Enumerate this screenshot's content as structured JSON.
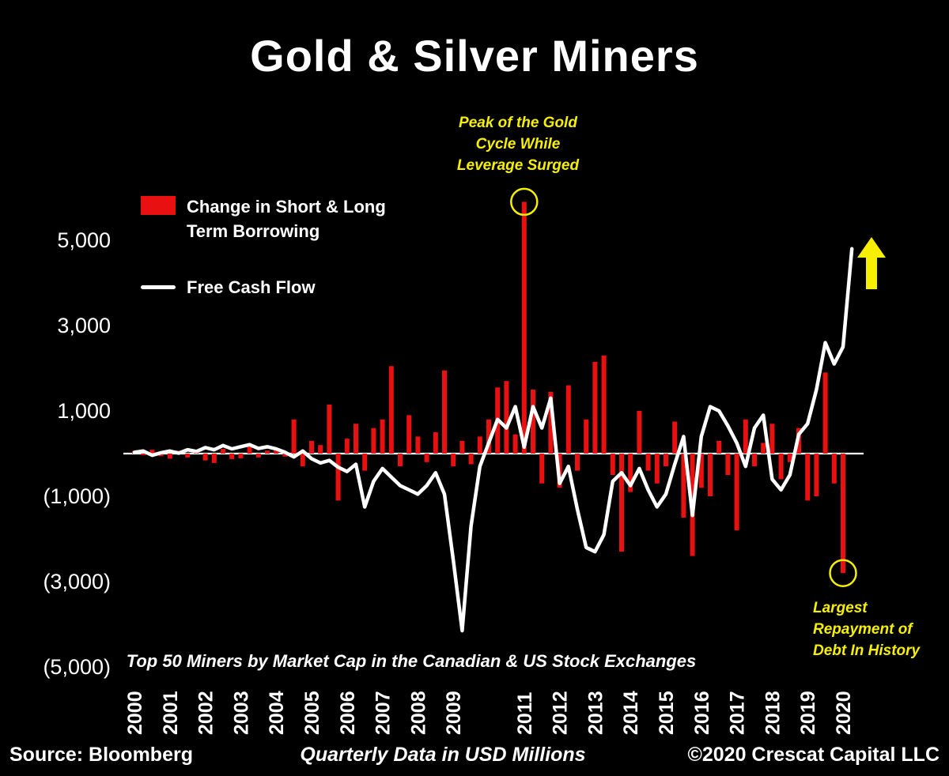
{
  "title": "Gold & Silver Miners",
  "subtitle": "Top 50 Miners by Market Cap in the Canadian & US Stock Exchanges",
  "legend": {
    "borrowing_line1": "Change in Short & Long",
    "borrowing_line2": "Term Borrowing",
    "fcf_label": "Free Cash Flow"
  },
  "annotations": {
    "peak": {
      "line1": "Peak of the Gold",
      "line2": "Cycle While",
      "line3": "Leverage Surged"
    },
    "repayment": {
      "line1": "Largest",
      "line2": "Repayment of",
      "line3": "Debt In History"
    }
  },
  "footer": {
    "source": "Source: Bloomberg",
    "center": "Quarterly Data in USD Millions",
    "copyright": "©2020 Crescat Capital LLC"
  },
  "colors": {
    "background": "#000000",
    "bar": "#e81010",
    "line": "#ffffff",
    "accent": "#f6ef00"
  },
  "chart_data": {
    "type": "bar+line",
    "units": "USD Millions, quarterly",
    "start_year": 2000,
    "quarters_per_year": 4,
    "ylim": [
      -5600,
      6400
    ],
    "grid": false,
    "legend_position": "upper-left",
    "y_ticks": [
      {
        "value": 5000,
        "label": "5,000"
      },
      {
        "value": 3000,
        "label": "3,000"
      },
      {
        "value": 1000,
        "label": "1,000"
      },
      {
        "value": -1000,
        "label": "(1,000)"
      },
      {
        "value": -3000,
        "label": "(3,000)"
      },
      {
        "value": -5000,
        "label": "(5,000)"
      }
    ],
    "x_ticks": [
      {
        "label": "2000",
        "year_index": 0
      },
      {
        "label": "2001",
        "year_index": 1
      },
      {
        "label": "2002",
        "year_index": 2
      },
      {
        "label": "2003",
        "year_index": 3
      },
      {
        "label": "2004",
        "year_index": 4
      },
      {
        "label": "2005",
        "year_index": 5
      },
      {
        "label": "2006",
        "year_index": 6
      },
      {
        "label": "2007",
        "year_index": 7
      },
      {
        "label": "2008",
        "year_index": 8
      },
      {
        "label": "2009",
        "year_index": 9
      },
      {
        "label": "2011",
        "year_index": 11
      },
      {
        "label": "2012",
        "year_index": 12
      },
      {
        "label": "2013",
        "year_index": 13
      },
      {
        "label": "2014",
        "year_index": 14
      },
      {
        "label": "2015",
        "year_index": 15
      },
      {
        "label": "2016",
        "year_index": 16
      },
      {
        "label": "2017",
        "year_index": 17
      },
      {
        "label": "2018",
        "year_index": 18
      },
      {
        "label": "2019",
        "year_index": 19
      },
      {
        "label": "2020",
        "year_index": 20
      }
    ],
    "series": [
      {
        "name": "Change in Short & Long Term Borrowing",
        "type": "bar",
        "color": "#e81010",
        "values": [
          60,
          -40,
          90,
          -60,
          -120,
          70,
          -90,
          50,
          -160,
          -220,
          110,
          -130,
          -110,
          160,
          -90,
          70,
          120,
          -70,
          800,
          -300,
          300,
          200,
          1150,
          -1100,
          350,
          700,
          -400,
          600,
          800,
          2050,
          -300,
          900,
          400,
          -200,
          500,
          1950,
          -300,
          300,
          -250,
          400,
          800,
          1550,
          1700,
          450,
          5900,
          1500,
          -700,
          1450,
          -800,
          1600,
          -400,
          800,
          2150,
          2300,
          -500,
          -2300,
          -900,
          1000,
          -400,
          -700,
          -300,
          750,
          -1500,
          -2400,
          -800,
          -1000,
          300,
          -500,
          -1800,
          800,
          -300,
          250,
          700,
          -600,
          -200,
          600,
          -1100,
          -1000,
          1900,
          -700,
          -2800,
          0
        ]
      },
      {
        "name": "Free Cash Flow",
        "type": "line",
        "color": "#ffffff",
        "values": [
          30,
          60,
          -40,
          20,
          60,
          10,
          90,
          50,
          140,
          90,
          190,
          110,
          160,
          210,
          120,
          160,
          110,
          30,
          -80,
          60,
          -120,
          -220,
          -160,
          -320,
          -420,
          -250,
          -1250,
          -650,
          -350,
          -550,
          -750,
          -850,
          -950,
          -750,
          -450,
          -950,
          -2500,
          -4150,
          -1700,
          -300,
          250,
          800,
          600,
          1100,
          150,
          1100,
          600,
          1300,
          -700,
          -300,
          -1300,
          -2200,
          -2300,
          -1900,
          -650,
          -450,
          -750,
          -350,
          -850,
          -1250,
          -950,
          -250,
          400,
          -1450,
          400,
          1100,
          1000,
          650,
          250,
          -300,
          600,
          900,
          -600,
          -850,
          -500,
          450,
          700,
          1500,
          2600,
          2100,
          2500,
          4800
        ]
      }
    ]
  }
}
